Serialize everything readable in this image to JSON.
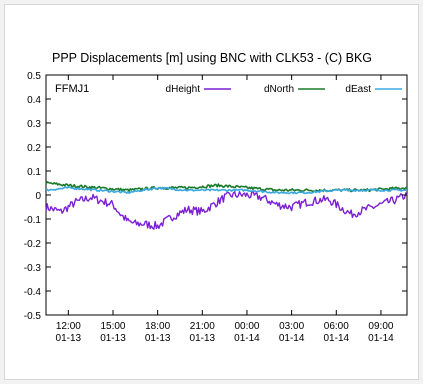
{
  "chart_data": {
    "type": "line",
    "title": "PPP Displacements [m] using BNC with CLK53 - (C) BKG",
    "station": "FFMJ1",
    "xlabel": "",
    "ylabel": "",
    "ylim": [
      -0.5,
      0.5
    ],
    "yticks": [
      0.5,
      0.4,
      0.3,
      0.2,
      0.1,
      0,
      -0.1,
      -0.2,
      -0.3,
      -0.4,
      -0.5
    ],
    "xlim": [
      "2012-01-13 10:30",
      "2012-01-14 10:45"
    ],
    "xticks": [
      {
        "time": "2012-01-13 12:00",
        "line1": "12:00",
        "line2": "01-13"
      },
      {
        "time": "2012-01-13 15:00",
        "line1": "15:00",
        "line2": "01-13"
      },
      {
        "time": "2012-01-13 18:00",
        "line1": "18:00",
        "line2": "01-13"
      },
      {
        "time": "2012-01-13 21:00",
        "line1": "21:00",
        "line2": "01-13"
      },
      {
        "time": "2012-01-14 00:00",
        "line1": "00:00",
        "line2": "01-14"
      },
      {
        "time": "2012-01-14 03:00",
        "line1": "03:00",
        "line2": "01-14"
      },
      {
        "time": "2012-01-14 06:00",
        "line1": "06:00",
        "line2": "01-14"
      },
      {
        "time": "2012-01-14 09:00",
        "line1": "09:00",
        "line2": "01-14"
      }
    ],
    "legend_position": "top",
    "grid": false,
    "series": [
      {
        "name": "dHeight",
        "color": "#7b1fd6",
        "x": [
          "2012-01-13 10:30",
          "2012-01-13 11:00",
          "2012-01-13 11:30",
          "2012-01-13 12:00",
          "2012-01-13 12:30",
          "2012-01-13 13:00",
          "2012-01-13 13:30",
          "2012-01-13 14:00",
          "2012-01-13 15:00",
          "2012-01-13 15:30",
          "2012-01-13 16:00",
          "2012-01-13 16:30",
          "2012-01-13 17:00",
          "2012-01-13 18:00",
          "2012-01-13 18:30",
          "2012-01-13 19:00",
          "2012-01-13 20:00",
          "2012-01-13 21:00",
          "2012-01-13 22:00",
          "2012-01-13 22:30",
          "2012-01-13 23:00",
          "2012-01-14 00:00",
          "2012-01-14 01:00",
          "2012-01-14 02:00",
          "2012-01-14 03:00",
          "2012-01-14 04:00",
          "2012-01-14 05:00",
          "2012-01-14 05:30",
          "2012-01-14 06:00",
          "2012-01-14 07:00",
          "2012-01-14 08:00",
          "2012-01-14 09:00",
          "2012-01-14 10:00",
          "2012-01-14 10:45"
        ],
        "y": [
          -0.05,
          -0.06,
          -0.07,
          -0.05,
          -0.03,
          -0.02,
          -0.01,
          -0.02,
          -0.04,
          -0.08,
          -0.11,
          -0.12,
          -0.12,
          -0.13,
          -0.11,
          -0.09,
          -0.06,
          -0.07,
          -0.03,
          -0.01,
          0.0,
          0.0,
          -0.01,
          -0.04,
          -0.05,
          -0.03,
          -0.02,
          -0.02,
          -0.04,
          -0.08,
          -0.06,
          -0.04,
          -0.02,
          0.0
        ]
      },
      {
        "name": "dNorth",
        "color": "#1a7a2a",
        "x": [
          "2012-01-13 10:30",
          "2012-01-13 12:00",
          "2012-01-13 14:00",
          "2012-01-13 16:00",
          "2012-01-13 18:00",
          "2012-01-13 20:00",
          "2012-01-13 22:00",
          "2012-01-14 00:00",
          "2012-01-14 02:00",
          "2012-01-14 04:00",
          "2012-01-14 06:00",
          "2012-01-14 08:00",
          "2012-01-14 10:45"
        ],
        "y": [
          0.05,
          0.04,
          0.03,
          0.02,
          0.03,
          0.03,
          0.04,
          0.03,
          0.02,
          0.02,
          0.02,
          0.02,
          0.03
        ]
      },
      {
        "name": "dEast",
        "color": "#3aa8e0",
        "x": [
          "2012-01-13 10:30",
          "2012-01-13 12:00",
          "2012-01-13 14:00",
          "2012-01-13 16:00",
          "2012-01-13 18:00",
          "2012-01-13 20:00",
          "2012-01-13 22:00",
          "2012-01-14 00:00",
          "2012-01-14 02:00",
          "2012-01-14 04:00",
          "2012-01-14 06:00",
          "2012-01-14 08:00",
          "2012-01-14 10:45"
        ],
        "y": [
          0.02,
          0.03,
          0.02,
          0.01,
          0.03,
          0.02,
          0.02,
          0.02,
          0.01,
          0.01,
          0.02,
          0.02,
          0.02
        ]
      }
    ]
  }
}
